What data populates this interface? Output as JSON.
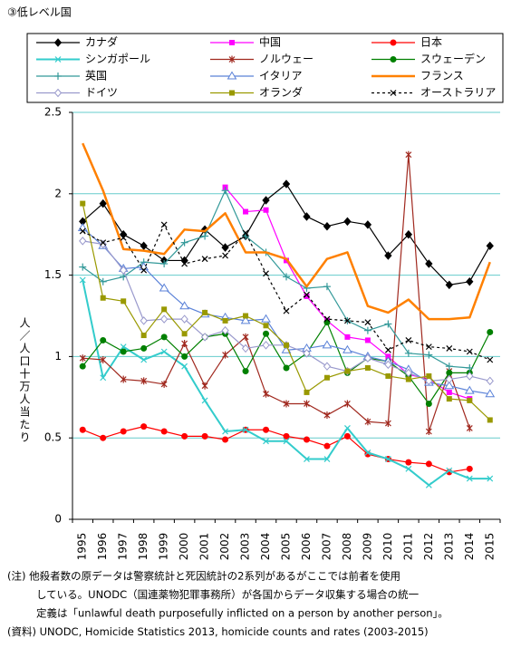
{
  "chart_data": {
    "type": "line",
    "title": "③低レベル国",
    "y_label": "人／人口十万人当たり",
    "categories": [
      "1995",
      "1996",
      "1997",
      "1998",
      "1999",
      "2000",
      "2001",
      "2002",
      "2003",
      "2004",
      "2005",
      "2006",
      "2007",
      "2008",
      "2009",
      "2010",
      "2011",
      "2012",
      "2013",
      "2014",
      "2015"
    ],
    "ylim": [
      0,
      2.5
    ],
    "yticks": [
      0,
      0.5,
      1,
      1.5,
      2,
      2.5
    ],
    "grid": true,
    "series": [
      {
        "name": "カナダ",
        "color": "#000000",
        "marker": "diamond",
        "values": [
          1.83,
          1.94,
          1.75,
          1.68,
          1.59,
          1.59,
          1.78,
          1.67,
          1.74,
          1.96,
          2.06,
          1.86,
          1.8,
          1.83,
          1.81,
          1.62,
          1.75,
          1.57,
          1.44,
          1.46,
          1.68
        ]
      },
      {
        "name": "中国",
        "color": "#ff00ff",
        "marker": "square",
        "values": [
          null,
          null,
          null,
          null,
          null,
          null,
          null,
          2.04,
          1.89,
          1.9,
          1.59,
          1.37,
          1.22,
          1.12,
          1.1,
          1.0,
          0.89,
          0.86,
          0.78,
          0.74,
          null
        ]
      },
      {
        "name": "日本",
        "color": "#ff0000",
        "marker": "circle",
        "values": [
          0.55,
          0.5,
          0.54,
          0.57,
          0.54,
          0.51,
          0.51,
          0.49,
          0.55,
          0.55,
          0.51,
          0.49,
          0.45,
          0.51,
          0.4,
          0.37,
          0.35,
          0.34,
          0.29,
          0.31,
          null
        ]
      },
      {
        "name": "シンガポール",
        "color": "#33cccc",
        "marker": "x",
        "width": 2,
        "values": [
          1.47,
          0.87,
          1.06,
          0.98,
          1.03,
          0.94,
          0.73,
          0.54,
          0.55,
          0.48,
          0.48,
          0.37,
          0.37,
          0.56,
          0.41,
          0.37,
          0.31,
          0.21,
          0.3,
          0.25,
          0.25
        ]
      },
      {
        "name": "ノルウェー",
        "color": "#a0281e",
        "marker": "asterisk",
        "values": [
          0.99,
          0.98,
          0.86,
          0.85,
          0.83,
          1.08,
          0.82,
          1.01,
          1.12,
          0.77,
          0.71,
          0.71,
          0.64,
          0.71,
          0.6,
          0.59,
          2.24,
          0.54,
          0.91,
          0.56,
          null
        ]
      },
      {
        "name": "スウェーデン",
        "color": "#008000",
        "marker": "circle",
        "values": [
          0.94,
          1.1,
          1.03,
          1.05,
          1.12,
          1.0,
          1.12,
          1.14,
          0.91,
          1.14,
          0.93,
          1.02,
          1.21,
          0.9,
          0.99,
          0.97,
          0.88,
          0.71,
          0.9,
          0.9,
          1.15
        ]
      },
      {
        "name": "英国",
        "color": "#339999",
        "marker": "plus",
        "values": [
          1.55,
          1.46,
          1.49,
          1.58,
          1.57,
          1.7,
          1.74,
          2.02,
          1.74,
          1.64,
          1.49,
          1.42,
          1.43,
          1.22,
          1.16,
          1.2,
          1.02,
          1.01,
          0.94,
          0.93,
          null
        ]
      },
      {
        "name": "イタリア",
        "color": "#5b82d8",
        "marker": "triangle",
        "values": [
          1.79,
          1.68,
          1.54,
          1.55,
          1.42,
          1.31,
          1.26,
          1.24,
          1.22,
          1.23,
          1.04,
          1.05,
          1.07,
          1.04,
          1.0,
          0.97,
          0.92,
          0.84,
          0.82,
          0.79,
          0.77
        ]
      },
      {
        "name": "フランス",
        "color": "#ff8000",
        "marker": "none",
        "width": 2.5,
        "values": [
          2.31,
          2.02,
          1.66,
          1.65,
          1.63,
          1.78,
          1.77,
          1.88,
          1.64,
          1.64,
          1.6,
          1.43,
          1.6,
          1.64,
          1.31,
          1.27,
          1.35,
          1.23,
          1.23,
          1.24,
          1.58
        ]
      },
      {
        "name": "ドイツ",
        "color": "#9999cc",
        "marker": "diamond-open",
        "values": [
          1.71,
          1.69,
          1.53,
          1.22,
          1.23,
          1.23,
          1.12,
          1.16,
          1.05,
          1.07,
          1.07,
          1.02,
          0.94,
          0.91,
          0.99,
          0.95,
          0.9,
          0.85,
          0.86,
          0.88,
          0.85
        ]
      },
      {
        "name": "オランダ",
        "color": "#999900",
        "marker": "square",
        "values": [
          1.94,
          1.36,
          1.34,
          1.13,
          1.29,
          1.14,
          1.27,
          1.22,
          1.25,
          1.19,
          1.07,
          0.78,
          0.87,
          0.91,
          0.93,
          0.88,
          0.86,
          0.88,
          0.74,
          0.73,
          0.61
        ]
      },
      {
        "name": "オーストラリア",
        "color": "#000000",
        "marker": "x",
        "dash": true,
        "values": [
          1.77,
          1.7,
          1.73,
          1.53,
          1.81,
          1.57,
          1.6,
          1.62,
          1.76,
          1.51,
          1.28,
          1.38,
          1.23,
          1.22,
          1.21,
          1.04,
          1.1,
          1.06,
          1.05,
          1.03,
          0.98
        ]
      }
    ],
    "notes": [
      "(注) 他殺者数の原データは警察統計と死因統計の2系列があるがここでは前者を使用",
      "している。UNODC（国連薬物犯罪事務所）が各国からデータ収集する場合の統一",
      "定義は「unlawful death purposefully inflicted on a person by another person」。",
      "(資料) UNODC, Homicide Statistics 2013, homicide counts and rates (2003-2015)"
    ]
  }
}
